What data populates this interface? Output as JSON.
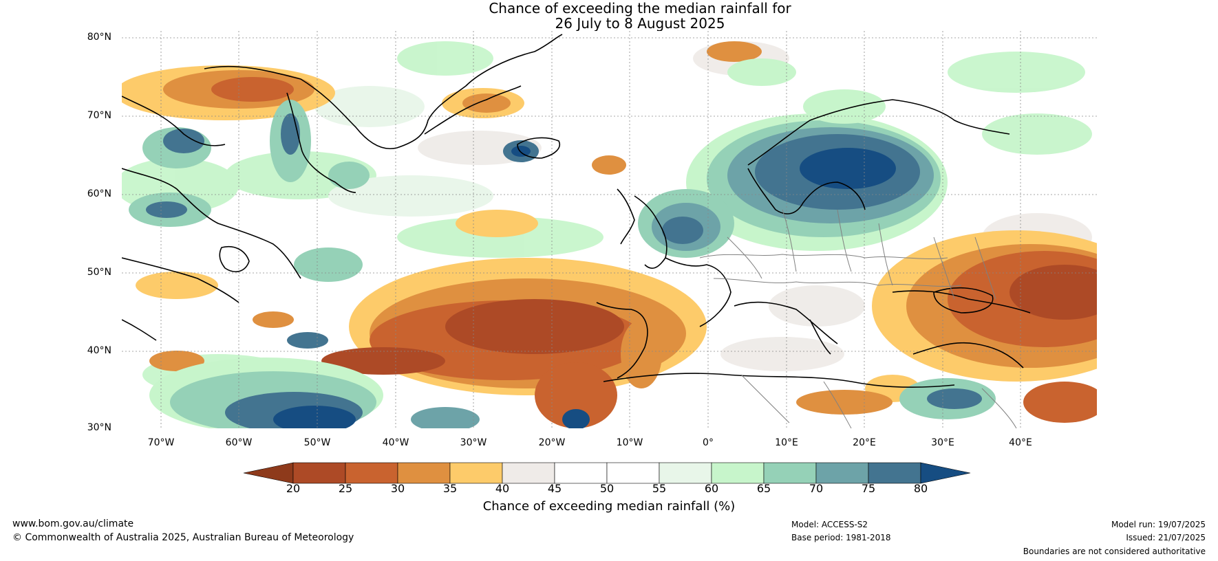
{
  "title": {
    "line1": "Chance of exceeding the median rainfall for",
    "line2": "26 July to 8 August 2025"
  },
  "map": {
    "region": "North Atlantic and Europe",
    "lat_labels": [
      "80°N",
      "70°N",
      "60°N",
      "50°N",
      "40°N",
      "30°N"
    ],
    "lon_labels": [
      "70°W",
      "60°W",
      "50°W",
      "40°W",
      "30°W",
      "20°W",
      "10°W",
      "0°",
      "10°E",
      "20°E",
      "30°E",
      "40°E"
    ],
    "colors": {
      "land_outline": "#000000",
      "border": "#808080",
      "grid": "#888888"
    }
  },
  "colorbar": {
    "title": "Chance of exceeding median rainfall (%)",
    "ticks": [
      "20",
      "25",
      "30",
      "35",
      "40",
      "45",
      "50",
      "55",
      "60",
      "65",
      "70",
      "75",
      "80"
    ],
    "colors": [
      "#8e3a1b",
      "#ad4a26",
      "#c9632f",
      "#df9040",
      "#fdcb6a",
      "#efebe8",
      "#ffffff",
      "#ffffff",
      "#e8f6e9",
      "#c7f5cb",
      "#95d1b7",
      "#6da3a8",
      "#437490",
      "#164d82"
    ]
  },
  "footer": {
    "left_url": "www.bom.gov.au/climate",
    "left_copyright": "© Commonwealth of Australia 2025, Australian Bureau of Meteorology",
    "model": "Model: ACCESS-S2",
    "base_period": "Base period: 1981-2018",
    "model_run": "Model run: 19/07/2025",
    "issued": "Issued: 21/07/2025",
    "disclaimer": "Boundaries are not considered authoritative"
  }
}
